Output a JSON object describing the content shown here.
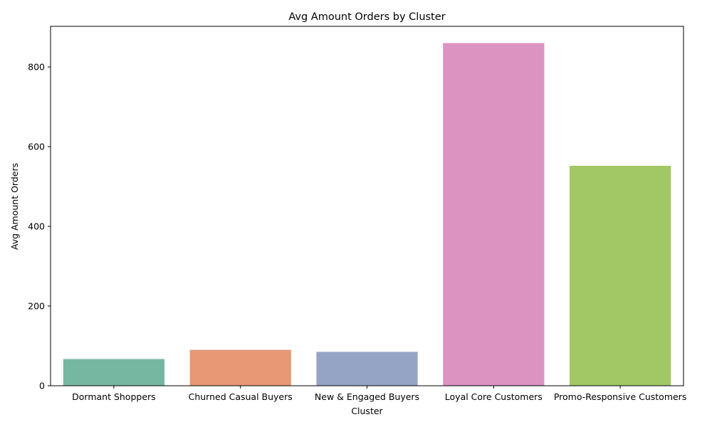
{
  "chart_data": {
    "type": "bar",
    "title": "Avg Amount Orders by Cluster",
    "xlabel": "Cluster",
    "ylabel": "Avg Amount Orders",
    "categories": [
      "Dormant Shoppers",
      "Churned Casual Buyers",
      "New & Engaged Buyers",
      "Loyal Core Customers",
      "Promo-Responsive Customers"
    ],
    "values": [
      67,
      90,
      85,
      860,
      552
    ],
    "colors": [
      "#76b7a2",
      "#e99876",
      "#95a4c5",
      "#dc93c1",
      "#a2c866"
    ],
    "ylim": [
      0,
      902
    ],
    "yticks": [
      0,
      200,
      400,
      600,
      800
    ],
    "grid": false,
    "legend": "none"
  }
}
